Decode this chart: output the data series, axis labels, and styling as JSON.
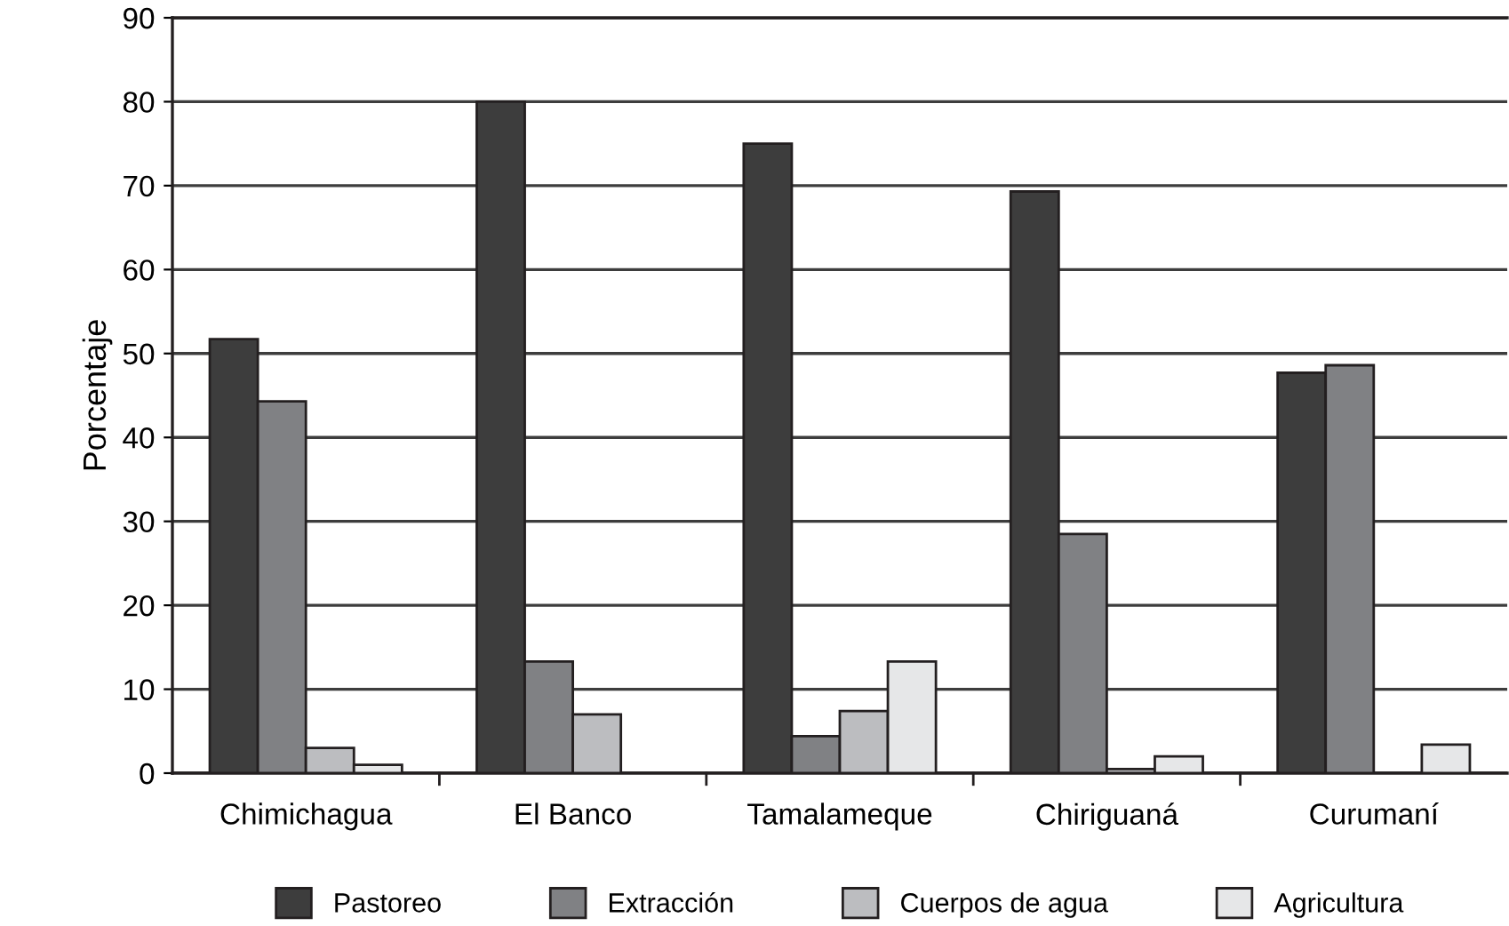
{
  "chart_data": {
    "type": "bar",
    "ylabel": "Porcentaje",
    "categories": [
      "Chimichagua",
      "El Banco",
      "Tamalameque",
      "Chiriguaná",
      "Curumaní"
    ],
    "series": [
      {
        "name": "Pastoreo",
        "color": "#3d3d3d",
        "values": [
          51.7,
          80,
          75,
          69.3,
          47.7
        ]
      },
      {
        "name": "Extracción",
        "color": "#808184",
        "values": [
          44.3,
          13.3,
          4.4,
          28.5,
          48.6
        ]
      },
      {
        "name": "Cuerpos de agua",
        "color": "#bcbdc0",
        "values": [
          3,
          7,
          7.4,
          0.5,
          null
        ]
      },
      {
        "name": "Agricultura",
        "color": "#e6e7e8",
        "values": [
          1,
          null,
          13.3,
          2,
          3.4
        ]
      }
    ],
    "ylim": [
      0,
      90
    ],
    "yticks": [
      0,
      10,
      20,
      30,
      40,
      50,
      60,
      70,
      80,
      90
    ],
    "grid": "y",
    "legend": "bottom"
  }
}
